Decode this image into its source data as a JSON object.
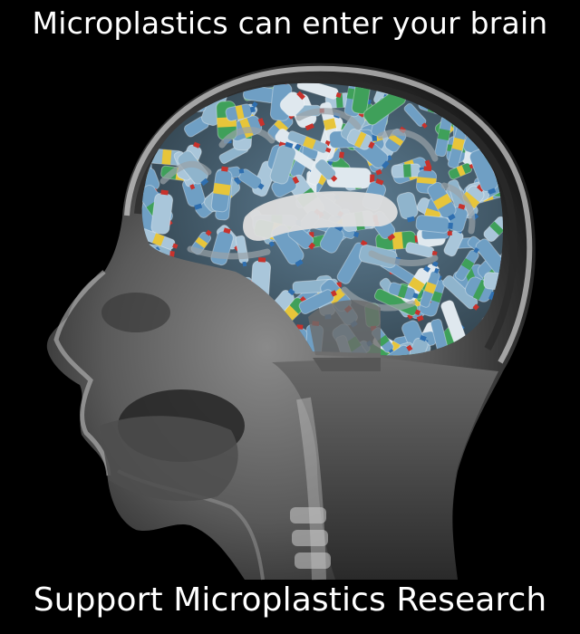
{
  "meme": {
    "top_text": "Microplastics can enter your brain",
    "bottom_text": "Support Microplastics Research"
  },
  "image": {
    "subject": "head-mri-sagittal-with-plastic-bottles-in-brain",
    "colors": {
      "background": "#000000",
      "caption_text": "#ffffff",
      "scan_gray": "#7a7a7a",
      "bottle_blue": "#6f9fc4",
      "bottle_green": "#3fa05a",
      "label_yellow": "#e7c53a",
      "cap_red": "#c8322c"
    }
  }
}
